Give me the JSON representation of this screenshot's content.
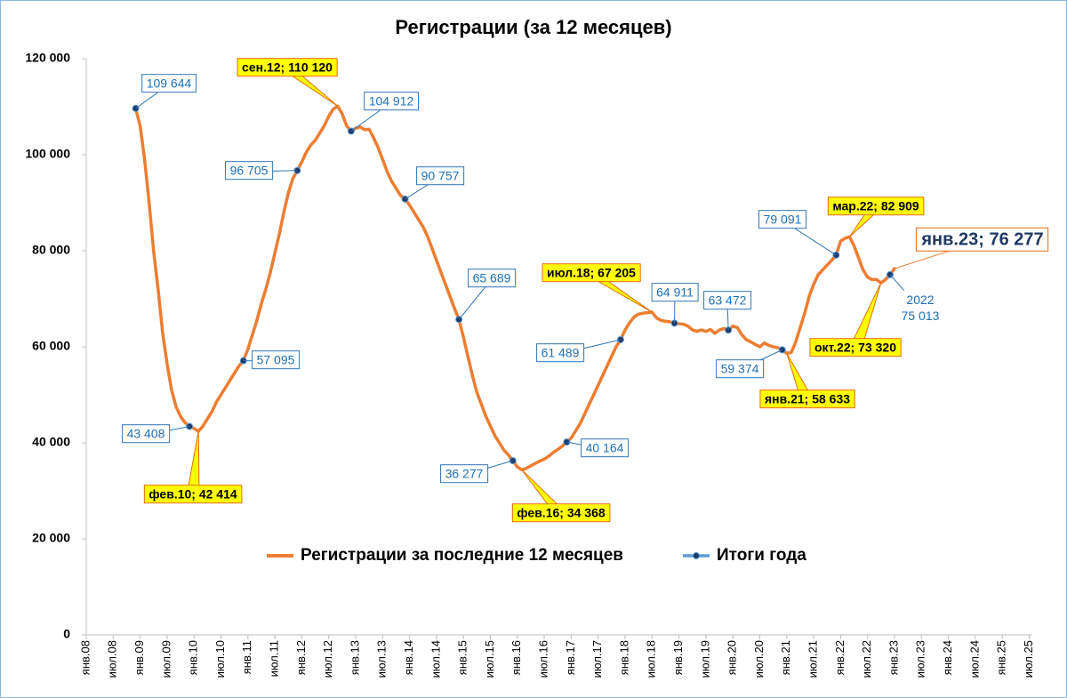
{
  "chart_data": {
    "type": "line",
    "title": "Регистрации (за 12 месяцев)",
    "categories": [
      "янв.08",
      null,
      null,
      null,
      null,
      null,
      "июл.08",
      null,
      null,
      null,
      null,
      null,
      "янв.09",
      null,
      null,
      null,
      null,
      null,
      "июл.09",
      null,
      null,
      null,
      null,
      null,
      "янв.10",
      null,
      null,
      null,
      null,
      null,
      "июл.10",
      null,
      null,
      null,
      null,
      null,
      "янв.11",
      null,
      null,
      null,
      null,
      null,
      "июл.11",
      null,
      null,
      null,
      null,
      null,
      "янв.12",
      null,
      null,
      null,
      null,
      null,
      "июл.12",
      null,
      null,
      null,
      null,
      null,
      "янв.13",
      null,
      null,
      null,
      null,
      null,
      "июл.13",
      null,
      null,
      null,
      null,
      null,
      "янв.14",
      null,
      null,
      null,
      null,
      null,
      "июл.14",
      null,
      null,
      null,
      null,
      null,
      "янв.15",
      null,
      null,
      null,
      null,
      null,
      "июл.15",
      null,
      null,
      null,
      null,
      null,
      "янв.16",
      null,
      null,
      null,
      null,
      null,
      "июл.16",
      null,
      null,
      null,
      null,
      null,
      "янв.17",
      null,
      null,
      null,
      null,
      null,
      "июл.17",
      null,
      null,
      null,
      null,
      null,
      "янв.18",
      null,
      null,
      null,
      null,
      null,
      "июл.18",
      null,
      null,
      null,
      null,
      null,
      "янв.19",
      null,
      null,
      null,
      null,
      null,
      "июл.19",
      null,
      null,
      null,
      null,
      null,
      "янв.20",
      null,
      null,
      null,
      null,
      null,
      "июл.20",
      null,
      null,
      null,
      null,
      null,
      "янв.21",
      null,
      null,
      null,
      null,
      null,
      "июл.21",
      null,
      null,
      null,
      null,
      null,
      "янв.22",
      null,
      null,
      null,
      null,
      null,
      "июл.22",
      null,
      null,
      null,
      null,
      null,
      "янв.23",
      null,
      null,
      null,
      null,
      null,
      "июл.23",
      null,
      null,
      null,
      null,
      null,
      "янв.24",
      null,
      null,
      null,
      null,
      null,
      "июл.24",
      null,
      null,
      null,
      null,
      null,
      "янв.25",
      null,
      null,
      null,
      null,
      null,
      "июл.25"
    ],
    "series": [
      {
        "name": "Регистрации за последние 12 месяцев",
        "color": "#ed7d31",
        "values": [
          null,
          null,
          null,
          null,
          null,
          null,
          null,
          null,
          null,
          null,
          null,
          109644,
          106000,
          99000,
          90000,
          80000,
          72000,
          63000,
          56500,
          51000,
          47500,
          45500,
          44200,
          43408,
          43000,
          42414,
          43500,
          45000,
          46500,
          48500,
          50000,
          51500,
          53000,
          54500,
          56000,
          57095,
          59500,
          62500,
          65500,
          69000,
          72000,
          75500,
          79500,
          83500,
          88000,
          92000,
          95000,
          96705,
          98500,
          100500,
          102000,
          103000,
          104500,
          106000,
          108000,
          109500,
          110120,
          108500,
          106000,
          104912,
          105500,
          105800,
          105200,
          105300,
          103500,
          101500,
          99000,
          96500,
          94500,
          93000,
          91500,
          90757,
          89500,
          88000,
          86500,
          85000,
          83000,
          80500,
          78000,
          75500,
          73000,
          70500,
          68000,
          65689,
          62000,
          58000,
          54000,
          50500,
          48000,
          45500,
          43500,
          41500,
          40000,
          38500,
          37500,
          36277,
          35000,
          34368,
          34700,
          35200,
          35700,
          36200,
          36600,
          37200,
          38000,
          38600,
          39300,
          40164,
          41000,
          42500,
          44000,
          46000,
          48000,
          50000,
          52000,
          54000,
          56000,
          58000,
          60000,
          61489,
          63500,
          65000,
          66200,
          66800,
          67000,
          67100,
          67205,
          66000,
          65500,
          65300,
          65200,
          64911,
          64800,
          64700,
          64300,
          63500,
          63200,
          63500,
          63200,
          63600,
          62800,
          63500,
          63800,
          63472,
          64300,
          64000,
          62500,
          61500,
          61000,
          60500,
          60000,
          60800,
          60300,
          60000,
          59800,
          59374,
          58633,
          58800,
          61000,
          64000,
          67000,
          70500,
          73000,
          75000,
          76000,
          77000,
          78000,
          79091,
          82000,
          82600,
          82909,
          81000,
          78500,
          76000,
          74500,
          74000,
          74000,
          73320,
          74000,
          75013,
          76277,
          null,
          null,
          null,
          null,
          null,
          null,
          null,
          null,
          null,
          null,
          null,
          null,
          null,
          null,
          null,
          null,
          null,
          null,
          null,
          null,
          null,
          null,
          null,
          null,
          null,
          null,
          null,
          null,
          null,
          null
        ],
        "value_labels": [
          null,
          null,
          null,
          null,
          null,
          null,
          null,
          null,
          null,
          null,
          null,
          null,
          null,
          null,
          null,
          null,
          null,
          null,
          null,
          null,
          null,
          null,
          null,
          null,
          null,
          "фев.10; 42 414",
          null,
          null,
          null,
          null,
          null,
          null,
          null,
          null,
          null,
          null,
          null,
          null,
          null,
          null,
          null,
          null,
          null,
          null,
          null,
          null,
          null,
          null,
          null,
          null,
          null,
          null,
          null,
          null,
          null,
          null,
          "сен.12; 110 120",
          null,
          null,
          null,
          null,
          null,
          null,
          null,
          null,
          null,
          null,
          null,
          null,
          null,
          null,
          null,
          null,
          null,
          null,
          null,
          null,
          null,
          null,
          null,
          null,
          null,
          null,
          null,
          null,
          null,
          null,
          null,
          null,
          null,
          null,
          null,
          null,
          null,
          null,
          null,
          null,
          "фев.16; 34 368",
          null,
          null,
          null,
          null,
          null,
          null,
          null,
          null,
          null,
          null,
          null,
          null,
          null,
          null,
          null,
          null,
          null,
          null,
          null,
          null,
          null,
          null,
          null,
          null,
          null,
          null,
          null,
          null,
          "июл.18; 67 205",
          null,
          null,
          null,
          null,
          null,
          null,
          null,
          null,
          null,
          null,
          null,
          null,
          null,
          null,
          null,
          null,
          null,
          null,
          null,
          null,
          null,
          null,
          null,
          null,
          null,
          null,
          null,
          null,
          null,
          "янв.21; 58 633",
          null,
          null,
          null,
          null,
          null,
          null,
          null,
          null,
          null,
          null,
          null,
          null,
          null,
          "мар.22; 82 909",
          null,
          null,
          null,
          null,
          null,
          null,
          "окт.22; 73 320",
          null,
          null,
          "янв.23; 76 277",
          null,
          null,
          null,
          null,
          null,
          null,
          null,
          null,
          null,
          null,
          null,
          null,
          null,
          null,
          null,
          null,
          null,
          null,
          null,
          null,
          null,
          null,
          null,
          null,
          null,
          null,
          null,
          null,
          null,
          null
        ]
      },
      {
        "name": "Итоги года",
        "color": "#5b9bd5",
        "marker": "circle",
        "marker_color": "#1f3864",
        "values": [
          null,
          null,
          null,
          null,
          null,
          null,
          null,
          null,
          null,
          null,
          null,
          109644,
          null,
          null,
          null,
          null,
          null,
          null,
          null,
          null,
          null,
          null,
          null,
          43408,
          null,
          null,
          null,
          null,
          null,
          null,
          null,
          null,
          null,
          null,
          null,
          57095,
          null,
          null,
          null,
          null,
          null,
          null,
          null,
          null,
          null,
          null,
          null,
          96705,
          null,
          null,
          null,
          null,
          null,
          null,
          null,
          null,
          null,
          null,
          null,
          104912,
          null,
          null,
          null,
          null,
          null,
          null,
          null,
          null,
          null,
          null,
          null,
          90757,
          null,
          null,
          null,
          null,
          null,
          null,
          null,
          null,
          null,
          null,
          null,
          65689,
          null,
          null,
          null,
          null,
          null,
          null,
          null,
          null,
          null,
          null,
          null,
          36277,
          null,
          null,
          null,
          null,
          null,
          null,
          null,
          null,
          null,
          null,
          null,
          40164,
          null,
          null,
          null,
          null,
          null,
          null,
          null,
          null,
          null,
          null,
          null,
          61489,
          null,
          null,
          null,
          null,
          null,
          null,
          null,
          null,
          null,
          null,
          null,
          64911,
          null,
          null,
          null,
          null,
          null,
          null,
          null,
          null,
          null,
          null,
          null,
          63472,
          null,
          null,
          null,
          null,
          null,
          null,
          null,
          null,
          null,
          null,
          null,
          59374,
          null,
          null,
          null,
          null,
          null,
          null,
          null,
          null,
          null,
          null,
          null,
          79091,
          null,
          null,
          null,
          null,
          null,
          null,
          null,
          null,
          null,
          null,
          null,
          75013,
          null,
          null,
          null,
          null,
          null,
          null,
          null,
          null,
          null,
          null,
          null,
          null,
          null,
          null,
          null,
          null,
          null,
          null,
          null,
          null,
          null,
          null,
          null,
          null,
          null,
          null,
          null,
          null,
          null,
          null,
          null
        ],
        "value_labels": [
          null,
          null,
          null,
          null,
          null,
          null,
          null,
          null,
          null,
          null,
          null,
          "109 644",
          null,
          null,
          null,
          null,
          null,
          null,
          null,
          null,
          null,
          null,
          null,
          "43 408",
          null,
          null,
          null,
          null,
          null,
          null,
          null,
          null,
          null,
          null,
          null,
          "57 095",
          null,
          null,
          null,
          null,
          null,
          null,
          null,
          null,
          null,
          null,
          null,
          "96 705",
          null,
          null,
          null,
          null,
          null,
          null,
          null,
          null,
          null,
          null,
          null,
          "104 912",
          null,
          null,
          null,
          null,
          null,
          null,
          null,
          null,
          null,
          null,
          null,
          "90 757",
          null,
          null,
          null,
          null,
          null,
          null,
          null,
          null,
          null,
          null,
          null,
          "65 689",
          null,
          null,
          null,
          null,
          null,
          null,
          null,
          null,
          null,
          null,
          null,
          "36 277",
          null,
          null,
          null,
          null,
          null,
          null,
          null,
          null,
          null,
          null,
          null,
          "40 164",
          null,
          null,
          null,
          null,
          null,
          null,
          null,
          null,
          null,
          null,
          null,
          "61 489",
          null,
          null,
          null,
          null,
          null,
          null,
          null,
          null,
          null,
          null,
          null,
          "64 911",
          null,
          null,
          null,
          null,
          null,
          null,
          null,
          null,
          null,
          null,
          null,
          "63 472",
          null,
          null,
          null,
          null,
          null,
          null,
          null,
          null,
          null,
          null,
          null,
          "59 374",
          null,
          null,
          null,
          null,
          null,
          null,
          null,
          null,
          null,
          null,
          null,
          "79 091",
          null,
          null,
          null,
          null,
          null,
          null,
          null,
          null,
          null,
          null,
          null,
          "2022\n75 013",
          null,
          null,
          null,
          null,
          null,
          null,
          null,
          null,
          null,
          null,
          null,
          null,
          null,
          null,
          null,
          null,
          null,
          null,
          null,
          null,
          null,
          null,
          null,
          null,
          null,
          null,
          null,
          null,
          null,
          null,
          null
        ]
      }
    ],
    "ylim": [
      0,
      120000
    ],
    "yticks": [
      0,
      {
        "value": 20000,
        "label": "20 000"
      },
      {
        "value": 40000,
        "label": "40 000"
      },
      {
        "value": 60000,
        "label": "60 000"
      },
      {
        "value": 80000,
        "label": "80 000"
      },
      {
        "value": 100000,
        "label": "100 000"
      },
      {
        "value": 120000,
        "label": "120 000"
      }
    ],
    "grid": false,
    "legend": "lower center"
  }
}
